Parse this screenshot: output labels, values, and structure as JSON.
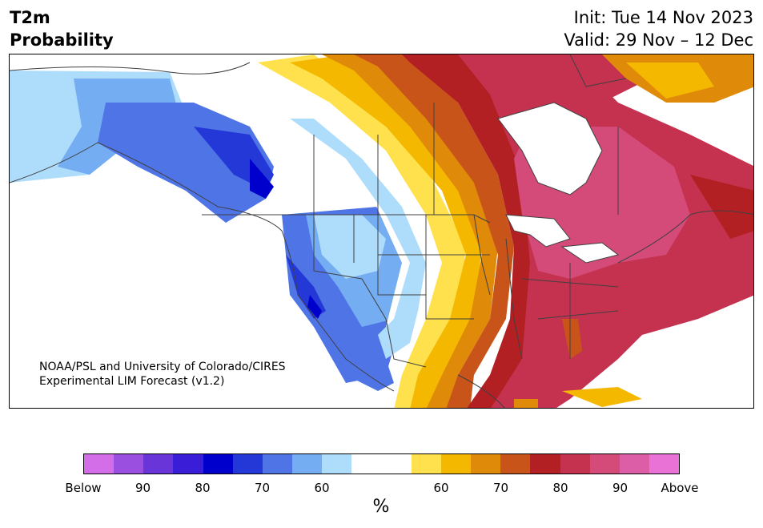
{
  "header": {
    "variable": "T2m",
    "product": "Probability",
    "init": "Init: Tue 14 Nov 2023",
    "valid": "Valid: 29 Nov – 12 Dec"
  },
  "credit": {
    "line1": "NOAA/PSL and University of Colorado/CIRES",
    "line2": "Experimental LIM Forecast (v1.2)"
  },
  "colorbar": {
    "unit": "%",
    "colors": [
      "#d46ee8",
      "#9a4fe0",
      "#6a35d8",
      "#3a1dd6",
      "#0000cd",
      "#2438d8",
      "#4f74e6",
      "#74adf2",
      "#aedcfb",
      "#ffffff",
      "#ffffff",
      "#ffe14d",
      "#f5b800",
      "#e08a0a",
      "#c8541a",
      "#b22024",
      "#c43250",
      "#d44b7a",
      "#dc5ea6",
      "#e872d6"
    ],
    "tick_labels": [
      "Below",
      "90",
      "80",
      "70",
      "60",
      "60",
      "70",
      "80",
      "90",
      "Above"
    ]
  },
  "legend_colors": {
    "below_strong": "#0000cd",
    "near_normal": "#ffffff",
    "above_strong": "#b22024"
  }
}
